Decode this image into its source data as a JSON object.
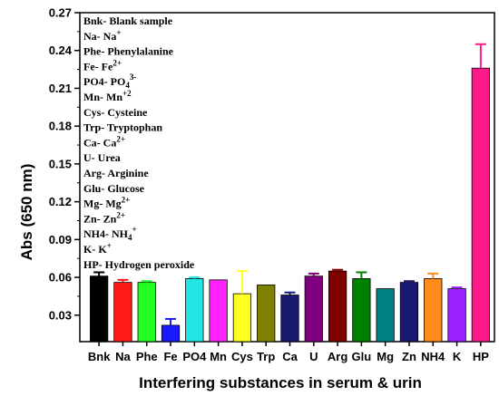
{
  "chart_data": {
    "type": "bar",
    "title": "",
    "xlabel": "Interfering substances in serum & urin",
    "ylabel": "Abs (650 nm)",
    "ylim": [
      0.009,
      0.27
    ],
    "yticks": [
      0.03,
      0.06,
      0.09,
      0.12,
      0.15,
      0.18,
      0.21,
      0.24,
      0.27
    ],
    "ytick_labels": [
      "0.03",
      "0.06",
      "0.09",
      "0.12",
      "0.15",
      "0.18",
      "0.21",
      "0.24",
      "0.27"
    ],
    "categories": [
      "Bnk",
      "Na",
      "Phe",
      "Fe",
      "PO4",
      "Mn",
      "Cys",
      "Trp",
      "Ca",
      "U",
      "Arg",
      "Glu",
      "Mg",
      "Zn",
      "NH4",
      "K",
      "HP"
    ],
    "values": [
      0.061,
      0.056,
      0.056,
      0.022,
      0.059,
      0.058,
      0.047,
      0.054,
      0.046,
      0.061,
      0.065,
      0.059,
      0.051,
      0.056,
      0.059,
      0.051,
      0.226
    ],
    "errors": [
      0.003,
      0.002,
      0.001,
      0.005,
      0.001,
      0.0,
      0.018,
      0.0,
      0.002,
      0.002,
      0.001,
      0.005,
      0.0,
      0.001,
      0.004,
      0.001,
      0.019
    ],
    "colors": [
      "#000000",
      "#ff1a1a",
      "#22ff22",
      "#1a1aff",
      "#22e5e5",
      "#ff22ff",
      "#ffff22",
      "#808000",
      "#191970",
      "#800080",
      "#800000",
      "#008000",
      "#008080",
      "#191970",
      "#ff8c1a",
      "#9a22ff",
      "#ff1a8c"
    ],
    "legend": {
      "placement": "top-left",
      "entries": [
        [
          "Bnk- Blank sample",
          ""
        ],
        [
          "Na- Na",
          "+"
        ],
        [
          "Phe- Phenylalanine",
          ""
        ],
        [
          "Fe- Fe",
          "2+"
        ],
        [
          "PO4- PO",
          "4",
          "3-"
        ],
        [
          "Mn- Mn",
          "+2"
        ],
        [
          "Cys- Cysteine",
          ""
        ],
        [
          "Trp- Tryptophan",
          ""
        ],
        [
          "Ca- Ca",
          "2+"
        ],
        [
          "U- Urea",
          ""
        ],
        [
          "Arg- Arginine",
          ""
        ],
        [
          "Glu- Glucose",
          ""
        ],
        [
          "Mg- Mg",
          "2+"
        ],
        [
          "Zn- Zn",
          "2+"
        ],
        [
          "NH4- NH",
          "4",
          "+"
        ],
        [
          "K- K",
          "+"
        ],
        [
          "HP- Hydrogen peroxide",
          ""
        ]
      ]
    }
  }
}
